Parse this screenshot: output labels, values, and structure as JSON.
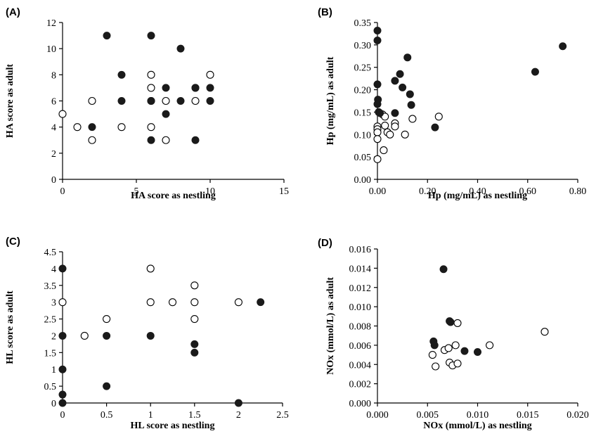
{
  "chart_data": [
    {
      "panel_label": "(A)",
      "type": "scatter",
      "xlabel": "HA score as nestling",
      "ylabel": "HA score as adult",
      "xlim": [
        0,
        15
      ],
      "ylim": [
        0,
        12
      ],
      "x_ticks": [
        "0",
        "5",
        "10",
        "15"
      ],
      "y_ticks": [
        "0",
        "2",
        "4",
        "6",
        "8",
        "10",
        "12"
      ],
      "x_tick_values": [
        0,
        5,
        10,
        15
      ],
      "y_tick_values": [
        0,
        2,
        4,
        6,
        8,
        10,
        12
      ],
      "grid": false,
      "series": [
        {
          "marker": "filled",
          "color": "#1a1a1a",
          "points": [
            [
              2,
              4
            ],
            [
              3,
              11
            ],
            [
              4,
              8
            ],
            [
              4,
              6
            ],
            [
              6,
              11
            ],
            [
              6,
              6
            ],
            [
              6,
              3
            ],
            [
              7,
              7
            ],
            [
              7,
              5
            ],
            [
              8,
              10
            ],
            [
              8,
              6
            ],
            [
              9,
              7
            ],
            [
              9,
              3
            ],
            [
              10,
              7
            ],
            [
              10,
              6
            ]
          ]
        },
        {
          "marker": "open",
          "color": "#000000",
          "points": [
            [
              0,
              5
            ],
            [
              1,
              4
            ],
            [
              2,
              6
            ],
            [
              2,
              3
            ],
            [
              4,
              4
            ],
            [
              6,
              8
            ],
            [
              6,
              7
            ],
            [
              6,
              6
            ],
            [
              6,
              4
            ],
            [
              7,
              3
            ],
            [
              7,
              6
            ],
            [
              9,
              6
            ],
            [
              9,
              7
            ],
            [
              10,
              8
            ]
          ]
        }
      ]
    },
    {
      "panel_label": "(B)",
      "type": "scatter",
      "xlabel": "Hp (mg/mL) as nestling",
      "ylabel": "Hp (mg/mL) as adult",
      "xlim": [
        0,
        0.8
      ],
      "ylim": [
        0,
        0.35
      ],
      "x_ticks": [
        "0.00",
        "0.20",
        "0.40",
        "0.60",
        "0.80"
      ],
      "y_ticks": [
        "0.00",
        "0.05",
        "0.10",
        "0.15",
        "0.20",
        "0.25",
        "0.30",
        "0.35"
      ],
      "x_tick_values": [
        0,
        0.2,
        0.4,
        0.6,
        0.8
      ],
      "y_tick_values": [
        0,
        0.05,
        0.1,
        0.15,
        0.2,
        0.25,
        0.3,
        0.35
      ],
      "grid": false,
      "series": [
        {
          "marker": "filled",
          "color": "#1a1a1a",
          "points": [
            [
              0.0,
              0.332
            ],
            [
              0.0,
              0.31
            ],
            [
              0.0,
              0.212
            ],
            [
              0.002,
              0.178
            ],
            [
              0.0,
              0.168
            ],
            [
              0.005,
              0.15
            ],
            [
              0.01,
              0.148
            ],
            [
              0.07,
              0.22
            ],
            [
              0.09,
              0.235
            ],
            [
              0.1,
              0.205
            ],
            [
              0.12,
              0.272
            ],
            [
              0.13,
              0.19
            ],
            [
              0.135,
              0.166
            ],
            [
              0.07,
              0.148
            ],
            [
              0.23,
              0.116
            ],
            [
              0.63,
              0.24
            ],
            [
              0.74,
              0.297
            ]
          ]
        },
        {
          "marker": "open",
          "color": "#000000",
          "points": [
            [
              0.0,
              0.118
            ],
            [
              0.0,
              0.112
            ],
            [
              0.0,
              0.105
            ],
            [
              0.0,
              0.09
            ],
            [
              0.0,
              0.045
            ],
            [
              0.02,
              0.145
            ],
            [
              0.025,
              0.065
            ],
            [
              0.03,
              0.14
            ],
            [
              0.03,
              0.12
            ],
            [
              0.04,
              0.105
            ],
            [
              0.05,
              0.1
            ],
            [
              0.07,
              0.125
            ],
            [
              0.07,
              0.118
            ],
            [
              0.11,
              0.1
            ],
            [
              0.14,
              0.135
            ],
            [
              0.245,
              0.14
            ]
          ]
        }
      ]
    },
    {
      "panel_label": "(C)",
      "type": "scatter",
      "xlabel": "HL score as nestling",
      "ylabel": "HL score as adult",
      "xlim": [
        0,
        2.5
      ],
      "ylim": [
        0,
        4.5
      ],
      "x_ticks": [
        "0",
        "0.5",
        "1",
        "1.5",
        "2",
        "2.5"
      ],
      "y_ticks": [
        "0",
        "0.5",
        "1",
        "1.5",
        "2",
        "2.5",
        "3",
        "3.5",
        "4",
        "4.5"
      ],
      "x_tick_values": [
        0,
        0.5,
        1,
        1.5,
        2,
        2.5
      ],
      "y_tick_values": [
        0,
        0.5,
        1,
        1.5,
        2,
        2.5,
        3,
        3.5,
        4,
        4.5
      ],
      "grid": false,
      "series": [
        {
          "marker": "filled",
          "color": "#1a1a1a",
          "points": [
            [
              0,
              4
            ],
            [
              0,
              2
            ],
            [
              0,
              1
            ],
            [
              0,
              0.25
            ],
            [
              0,
              0
            ],
            [
              0.5,
              2
            ],
            [
              0.5,
              0.5
            ],
            [
              1,
              2
            ],
            [
              1.5,
              1.75
            ],
            [
              1.5,
              1.5
            ],
            [
              2,
              0
            ],
            [
              2.25,
              3
            ]
          ]
        },
        {
          "marker": "open",
          "color": "#000000",
          "points": [
            [
              0,
              3
            ],
            [
              0.25,
              2
            ],
            [
              0.5,
              2.5
            ],
            [
              1,
              4
            ],
            [
              1,
              3
            ],
            [
              1.25,
              3
            ],
            [
              1.5,
              3.5
            ],
            [
              1.5,
              3
            ],
            [
              1.5,
              2.5
            ],
            [
              2,
              3
            ]
          ]
        }
      ]
    },
    {
      "panel_label": "(D)",
      "type": "scatter",
      "xlabel": "NOx (mmol/L) as nestling",
      "ylabel": "NOx (mmol/L) as adult",
      "xlim": [
        0,
        0.02
      ],
      "ylim": [
        0,
        0.016
      ],
      "x_ticks": [
        "0.000",
        "0.005",
        "0.010",
        "0.015",
        "0.020"
      ],
      "y_ticks": [
        "0.000",
        "0.002",
        "0.004",
        "0.006",
        "0.008",
        "0.010",
        "0.012",
        "0.014",
        "0.016"
      ],
      "x_tick_values": [
        0,
        0.005,
        0.01,
        0.015,
        0.02
      ],
      "y_tick_values": [
        0,
        0.002,
        0.004,
        0.006,
        0.008,
        0.01,
        0.012,
        0.014,
        0.016
      ],
      "grid": false,
      "series": [
        {
          "marker": "filled",
          "color": "#1a1a1a",
          "points": [
            [
              0.0056,
              0.0064
            ],
            [
              0.0057,
              0.006
            ],
            [
              0.0066,
              0.0139
            ],
            [
              0.0072,
              0.0085
            ],
            [
              0.0073,
              0.0084
            ],
            [
              0.0087,
              0.0054
            ],
            [
              0.01,
              0.0053
            ]
          ]
        },
        {
          "marker": "open",
          "color": "#000000",
          "points": [
            [
              0.0055,
              0.005
            ],
            [
              0.0058,
              0.0038
            ],
            [
              0.0067,
              0.0055
            ],
            [
              0.0071,
              0.0057
            ],
            [
              0.0072,
              0.0042
            ],
            [
              0.0075,
              0.0039
            ],
            [
              0.0078,
              0.006
            ],
            [
              0.008,
              0.0041
            ],
            [
              0.008,
              0.0083
            ],
            [
              0.0112,
              0.006
            ],
            [
              0.0167,
              0.0074
            ]
          ]
        }
      ]
    }
  ]
}
